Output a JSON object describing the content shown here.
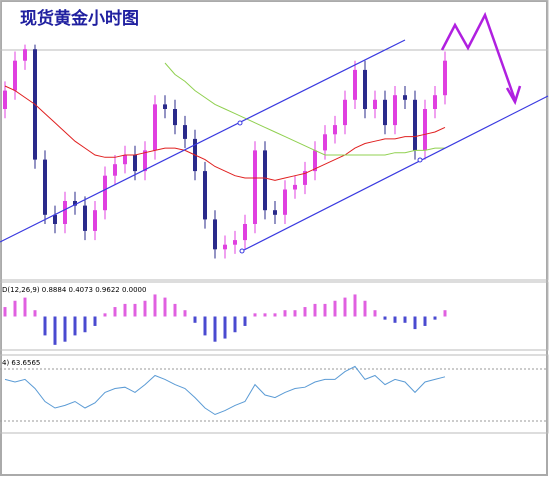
{
  "chart_data": {
    "type": "candlestick",
    "title": "现货黄金小时图",
    "ylim": [
      0,
      100
    ],
    "up_color": "#e040e0",
    "down_color": "#2a2a8a",
    "open": [
      70,
      78,
      91,
      96,
      48,
      24,
      20,
      30,
      28,
      17,
      26,
      41,
      46,
      50,
      43,
      52,
      72,
      70,
      63,
      57,
      43,
      22,
      9,
      11,
      13,
      20,
      52,
      26,
      24,
      35,
      37,
      43,
      52,
      59,
      63,
      74,
      87,
      70,
      74,
      63,
      76,
      74,
      52,
      70,
      76
    ],
    "high": [
      82,
      95,
      98,
      98,
      52,
      28,
      34,
      34,
      32,
      30,
      45,
      50,
      54,
      54,
      56,
      76,
      76,
      74,
      67,
      61,
      47,
      26,
      15,
      17,
      24,
      56,
      56,
      30,
      39,
      41,
      47,
      56,
      63,
      67,
      78,
      91,
      91,
      78,
      78,
      80,
      80,
      78,
      74,
      80,
      95
    ],
    "low": [
      66,
      74,
      87,
      44,
      20,
      16,
      16,
      24,
      13,
      13,
      22,
      37,
      42,
      39,
      39,
      48,
      66,
      59,
      53,
      39,
      18,
      5,
      5,
      7,
      9,
      16,
      22,
      20,
      20,
      31,
      33,
      39,
      48,
      55,
      59,
      70,
      66,
      66,
      59,
      59,
      70,
      48,
      48,
      66,
      72
    ],
    "close": [
      78,
      91,
      96,
      48,
      24,
      20,
      30,
      28,
      17,
      26,
      41,
      46,
      50,
      43,
      52,
      72,
      70,
      63,
      57,
      43,
      22,
      9,
      11,
      13,
      20,
      52,
      26,
      24,
      35,
      37,
      43,
      52,
      59,
      63,
      74,
      87,
      70,
      74,
      63,
      76,
      74,
      52,
      70,
      76,
      91
    ],
    "moving_averages": [
      {
        "color": "#e02020",
        "values": [
          80,
          78,
          75,
          72,
          68,
          64,
          60,
          56,
          53,
          50,
          49,
          49,
          50,
          50,
          51,
          52,
          53,
          53,
          52,
          50,
          48,
          45,
          43,
          41,
          40,
          40,
          40,
          39,
          40,
          41,
          42,
          44,
          46,
          48,
          50,
          53,
          55,
          56,
          57,
          57,
          58,
          58,
          59,
          60,
          62
        ]
      },
      {
        "color": "#90d050",
        "values": [
          null,
          null,
          null,
          null,
          null,
          null,
          null,
          null,
          null,
          null,
          null,
          null,
          null,
          null,
          null,
          null,
          90,
          85,
          82,
          78,
          75,
          72,
          70,
          68,
          66,
          64,
          62,
          60,
          58,
          56,
          54,
          52,
          50,
          50,
          50,
          50,
          50,
          50,
          50,
          51,
          51,
          52,
          52,
          53,
          53
        ]
      }
    ],
    "macd": {
      "label": "D(12,26,9) 0.8884 0.4073 0.9622 0.0000",
      "ylim": [
        -10,
        10
      ],
      "up_color": "#e060e0",
      "down_color": "#4a4ad0",
      "values": [
        3,
        5,
        6,
        2,
        -6,
        -9,
        -8,
        -6,
        -5,
        -3,
        1,
        3,
        4,
        4,
        5,
        7,
        6,
        4,
        2,
        -2,
        -6,
        -8,
        -7,
        -5,
        -3,
        1,
        1,
        1,
        2,
        2,
        3,
        4,
        4,
        5,
        6,
        7,
        5,
        2,
        -1,
        -2,
        -2,
        -4,
        -3,
        -1,
        2
      ]
    },
    "rsi": {
      "label": "4) 63.6565",
      "ylim": [
        0,
        100
      ],
      "levels": [
        70,
        30
      ],
      "color": "#5b9bd5",
      "values": [
        62,
        60,
        62,
        55,
        45,
        40,
        42,
        45,
        40,
        44,
        52,
        55,
        56,
        52,
        58,
        65,
        62,
        58,
        55,
        48,
        40,
        35,
        38,
        42,
        45,
        58,
        50,
        48,
        52,
        55,
        56,
        60,
        62,
        62,
        68,
        72,
        62,
        65,
        58,
        62,
        60,
        52,
        60,
        62,
        64
      ]
    }
  }
}
